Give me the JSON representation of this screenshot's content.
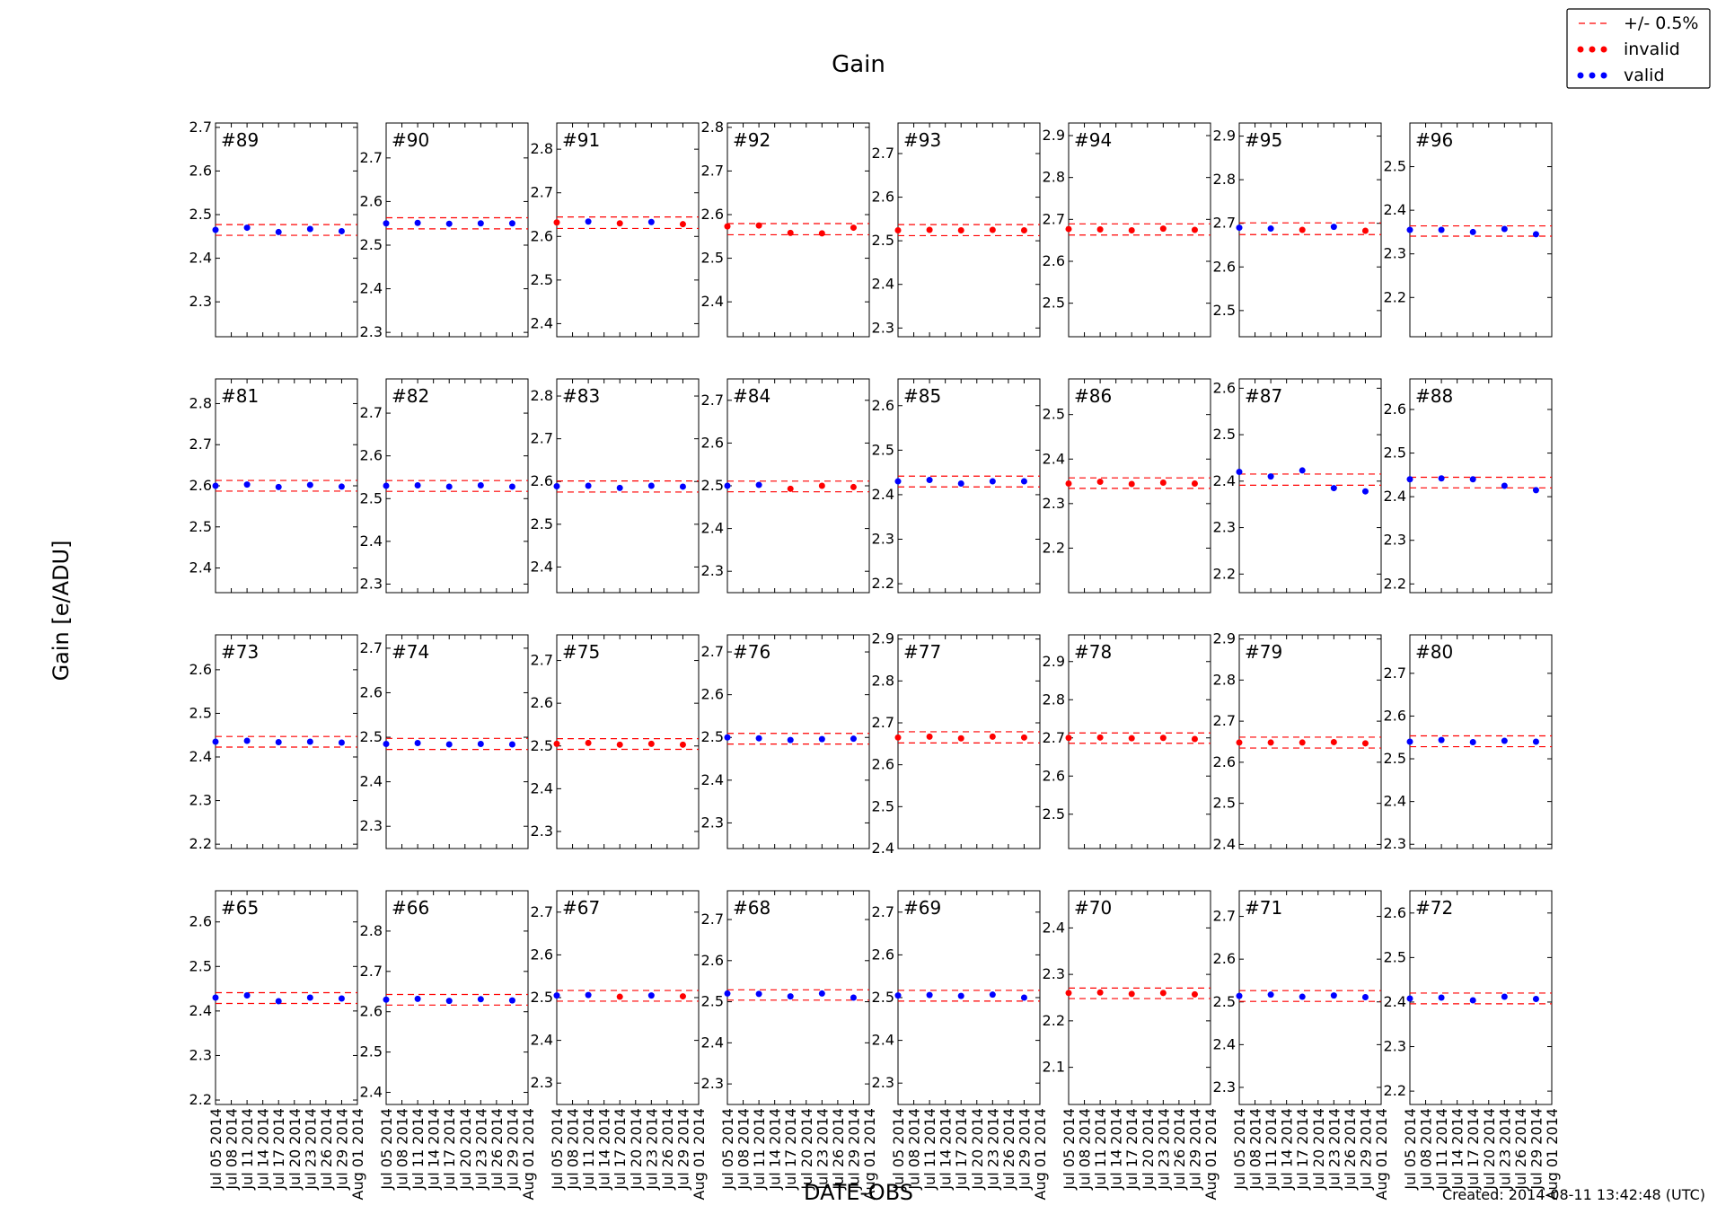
{
  "chart_data": {
    "type": "scatter",
    "title": "Gain",
    "xlabel": "DATE-OBS",
    "ylabel": "Gain [e/ADU]",
    "created": "Created: 2014-08-11 13:42:48 (UTC)",
    "legend": {
      "placement": "top-right",
      "entries": [
        {
          "key": "band",
          "label": "+/- 0.5%",
          "color": "#ff0000",
          "style": "dashed-line"
        },
        {
          "key": "invalid",
          "label": "invalid",
          "color": "#ff0000",
          "style": "dots"
        },
        {
          "key": "valid",
          "label": "valid",
          "color": "#0000ff",
          "style": "dots"
        }
      ]
    },
    "colors": {
      "valid": "#0000ff",
      "invalid": "#ff0000",
      "band": "#ff0000"
    },
    "x_tick_labels": [
      "Jul 05 2014",
      "Jul 08 2014",
      "Jul 11 2014",
      "Jul 14 2014",
      "Jul 17 2014",
      "Jul 20 2014",
      "Jul 23 2014",
      "Jul 26 2014",
      "Jul 29 2014",
      "Aug 01 2014"
    ],
    "x_dates": [
      "Jul 05 2014",
      "Jul 11 2014",
      "Jul 17 2014",
      "Jul 23 2014",
      "Jul 29 2014"
    ],
    "band_fraction": 0.005,
    "panels": [
      {
        "label": "#89",
        "ylim": [
          2.22,
          2.71
        ],
        "yticks": [
          2.3,
          2.4,
          2.5,
          2.6,
          2.7
        ],
        "values": [
          2.465,
          2.47,
          2.46,
          2.467,
          2.462
        ],
        "status": [
          "valid",
          "valid",
          "valid",
          "valid",
          "valid"
        ]
      },
      {
        "label": "#90",
        "ylim": [
          2.29,
          2.78
        ],
        "yticks": [
          2.3,
          2.4,
          2.5,
          2.6,
          2.7
        ],
        "values": [
          2.55,
          2.551,
          2.549,
          2.55,
          2.55
        ],
        "status": [
          "valid",
          "valid",
          "valid",
          "valid",
          "valid"
        ]
      },
      {
        "label": "#91",
        "ylim": [
          2.37,
          2.86
        ],
        "yticks": [
          2.4,
          2.5,
          2.6,
          2.7,
          2.8
        ],
        "values": [
          2.632,
          2.634,
          2.63,
          2.633,
          2.628
        ],
        "status": [
          "invalid",
          "valid",
          "invalid",
          "valid",
          "invalid"
        ]
      },
      {
        "label": "#92",
        "ylim": [
          2.32,
          2.81
        ],
        "yticks": [
          2.4,
          2.5,
          2.6,
          2.7,
          2.8
        ],
        "values": [
          2.573,
          2.575,
          2.558,
          2.557,
          2.57
        ],
        "status": [
          "invalid",
          "invalid",
          "invalid",
          "invalid",
          "invalid"
        ]
      },
      {
        "label": "#93",
        "ylim": [
          2.28,
          2.77
        ],
        "yticks": [
          2.3,
          2.4,
          2.5,
          2.6,
          2.7
        ],
        "values": [
          2.524,
          2.525,
          2.524,
          2.525,
          2.524
        ],
        "status": [
          "invalid",
          "invalid",
          "invalid",
          "invalid",
          "invalid"
        ]
      },
      {
        "label": "#94",
        "ylim": [
          2.42,
          2.93
        ],
        "yticks": [
          2.5,
          2.6,
          2.7,
          2.8,
          2.9
        ],
        "values": [
          2.677,
          2.676,
          2.674,
          2.678,
          2.675
        ],
        "status": [
          "invalid",
          "invalid",
          "invalid",
          "invalid",
          "invalid"
        ]
      },
      {
        "label": "#95",
        "ylim": [
          2.44,
          2.93
        ],
        "yticks": [
          2.5,
          2.6,
          2.7,
          2.8,
          2.9
        ],
        "values": [
          2.69,
          2.688,
          2.685,
          2.692,
          2.683
        ],
        "status": [
          "valid",
          "valid",
          "invalid",
          "valid",
          "invalid"
        ]
      },
      {
        "label": "#96",
        "ylim": [
          2.11,
          2.6
        ],
        "yticks": [
          2.2,
          2.3,
          2.4,
          2.5
        ],
        "values": [
          2.355,
          2.355,
          2.35,
          2.357,
          2.345
        ],
        "status": [
          "valid",
          "valid",
          "valid",
          "valid",
          "valid"
        ]
      },
      {
        "label": "#81",
        "ylim": [
          2.34,
          2.86
        ],
        "yticks": [
          2.4,
          2.5,
          2.6,
          2.7,
          2.8
        ],
        "values": [
          2.6,
          2.603,
          2.597,
          2.602,
          2.598
        ],
        "status": [
          "valid",
          "valid",
          "valid",
          "valid",
          "valid"
        ]
      },
      {
        "label": "#82",
        "ylim": [
          2.28,
          2.78
        ],
        "yticks": [
          2.3,
          2.4,
          2.5,
          2.6,
          2.7
        ],
        "values": [
          2.53,
          2.531,
          2.528,
          2.531,
          2.528
        ],
        "status": [
          "valid",
          "valid",
          "valid",
          "valid",
          "valid"
        ]
      },
      {
        "label": "#83",
        "ylim": [
          2.34,
          2.84
        ],
        "yticks": [
          2.4,
          2.5,
          2.6,
          2.7,
          2.8
        ],
        "values": [
          2.589,
          2.59,
          2.585,
          2.59,
          2.588
        ],
        "status": [
          "valid",
          "valid",
          "valid",
          "valid",
          "valid"
        ]
      },
      {
        "label": "#84",
        "ylim": [
          2.25,
          2.75
        ],
        "yticks": [
          2.3,
          2.4,
          2.5,
          2.6,
          2.7
        ],
        "values": [
          2.5,
          2.502,
          2.493,
          2.5,
          2.497
        ],
        "status": [
          "valid",
          "valid",
          "invalid",
          "invalid",
          "invalid"
        ]
      },
      {
        "label": "#85",
        "ylim": [
          2.18,
          2.66
        ],
        "yticks": [
          2.2,
          2.3,
          2.4,
          2.5,
          2.6
        ],
        "values": [
          2.43,
          2.433,
          2.425,
          2.43,
          2.43
        ],
        "status": [
          "valid",
          "valid",
          "valid",
          "valid",
          "valid"
        ]
      },
      {
        "label": "#86",
        "ylim": [
          2.1,
          2.58
        ],
        "yticks": [
          2.2,
          2.3,
          2.4,
          2.5
        ],
        "values": [
          2.345,
          2.349,
          2.344,
          2.347,
          2.345
        ],
        "status": [
          "invalid",
          "invalid",
          "invalid",
          "invalid",
          "invalid"
        ]
      },
      {
        "label": "#87",
        "ylim": [
          2.16,
          2.62
        ],
        "yticks": [
          2.2,
          2.3,
          2.4,
          2.5,
          2.6
        ],
        "values": [
          2.42,
          2.41,
          2.423,
          2.385,
          2.378
        ],
        "status": [
          "valid",
          "valid",
          "valid",
          "valid",
          "valid"
        ]
      },
      {
        "label": "#88",
        "ylim": [
          2.18,
          2.67
        ],
        "yticks": [
          2.2,
          2.3,
          2.4,
          2.5,
          2.6
        ],
        "values": [
          2.44,
          2.442,
          2.44,
          2.425,
          2.415
        ],
        "status": [
          "valid",
          "valid",
          "valid",
          "valid",
          "valid"
        ]
      },
      {
        "label": "#73",
        "ylim": [
          2.19,
          2.68
        ],
        "yticks": [
          2.2,
          2.3,
          2.4,
          2.5,
          2.6
        ],
        "values": [
          2.435,
          2.437,
          2.434,
          2.435,
          2.433
        ],
        "status": [
          "valid",
          "valid",
          "valid",
          "valid",
          "valid"
        ]
      },
      {
        "label": "#74",
        "ylim": [
          2.25,
          2.73
        ],
        "yticks": [
          2.3,
          2.4,
          2.5,
          2.6,
          2.7
        ],
        "values": [
          2.485,
          2.487,
          2.484,
          2.485,
          2.484
        ],
        "status": [
          "valid",
          "valid",
          "valid",
          "valid",
          "valid"
        ]
      },
      {
        "label": "#75",
        "ylim": [
          2.26,
          2.76
        ],
        "yticks": [
          2.3,
          2.4,
          2.5,
          2.6,
          2.7
        ],
        "values": [
          2.505,
          2.507,
          2.503,
          2.505,
          2.503
        ],
        "status": [
          "invalid",
          "invalid",
          "invalid",
          "invalid",
          "invalid"
        ]
      },
      {
        "label": "#76",
        "ylim": [
          2.24,
          2.74
        ],
        "yticks": [
          2.3,
          2.4,
          2.5,
          2.6,
          2.7
        ],
        "values": [
          2.5,
          2.498,
          2.494,
          2.496,
          2.497
        ],
        "status": [
          "valid",
          "valid",
          "valid",
          "valid",
          "valid"
        ]
      },
      {
        "label": "#77",
        "ylim": [
          2.4,
          2.91
        ],
        "yticks": [
          2.4,
          2.5,
          2.6,
          2.7,
          2.8,
          2.9
        ],
        "values": [
          2.665,
          2.667,
          2.663,
          2.667,
          2.665
        ],
        "status": [
          "invalid",
          "invalid",
          "invalid",
          "invalid",
          "invalid"
        ]
      },
      {
        "label": "#78",
        "ylim": [
          2.41,
          2.97
        ],
        "yticks": [
          2.5,
          2.6,
          2.7,
          2.8,
          2.9
        ],
        "values": [
          2.7,
          2.701,
          2.699,
          2.7,
          2.697
        ],
        "status": [
          "invalid",
          "invalid",
          "invalid",
          "invalid",
          "invalid"
        ]
      },
      {
        "label": "#79",
        "ylim": [
          2.39,
          2.91
        ],
        "yticks": [
          2.4,
          2.5,
          2.6,
          2.7,
          2.8,
          2.9
        ],
        "values": [
          2.648,
          2.648,
          2.648,
          2.649,
          2.646
        ],
        "status": [
          "invalid",
          "invalid",
          "invalid",
          "invalid",
          "invalid"
        ]
      },
      {
        "label": "#80",
        "ylim": [
          2.29,
          2.79
        ],
        "yticks": [
          2.3,
          2.4,
          2.5,
          2.6,
          2.7
        ],
        "values": [
          2.54,
          2.544,
          2.539,
          2.542,
          2.54
        ],
        "status": [
          "valid",
          "valid",
          "valid",
          "valid",
          "valid"
        ]
      },
      {
        "label": "#65",
        "ylim": [
          2.19,
          2.67
        ],
        "yticks": [
          2.2,
          2.3,
          2.4,
          2.5,
          2.6
        ],
        "values": [
          2.43,
          2.435,
          2.422,
          2.43,
          2.428
        ],
        "status": [
          "valid",
          "valid",
          "valid",
          "valid",
          "valid"
        ]
      },
      {
        "label": "#66",
        "ylim": [
          2.37,
          2.9
        ],
        "yticks": [
          2.4,
          2.5,
          2.6,
          2.7,
          2.8
        ],
        "values": [
          2.63,
          2.632,
          2.627,
          2.631,
          2.628
        ],
        "status": [
          "valid",
          "valid",
          "valid",
          "valid",
          "valid"
        ]
      },
      {
        "label": "#67",
        "ylim": [
          2.25,
          2.75
        ],
        "yticks": [
          2.3,
          2.4,
          2.5,
          2.6,
          2.7
        ],
        "values": [
          2.505,
          2.506,
          2.502,
          2.505,
          2.503
        ],
        "status": [
          "valid",
          "valid",
          "invalid",
          "valid",
          "invalid"
        ]
      },
      {
        "label": "#68",
        "ylim": [
          2.25,
          2.77
        ],
        "yticks": [
          2.3,
          2.4,
          2.5,
          2.6,
          2.7
        ],
        "values": [
          2.52,
          2.519,
          2.513,
          2.52,
          2.51
        ],
        "status": [
          "valid",
          "valid",
          "valid",
          "valid",
          "valid"
        ]
      },
      {
        "label": "#69",
        "ylim": [
          2.25,
          2.75
        ],
        "yticks": [
          2.3,
          2.4,
          2.5,
          2.6,
          2.7
        ],
        "values": [
          2.505,
          2.506,
          2.504,
          2.507,
          2.5
        ],
        "status": [
          "valid",
          "valid",
          "valid",
          "valid",
          "valid"
        ]
      },
      {
        "label": "#70",
        "ylim": [
          2.02,
          2.48
        ],
        "yticks": [
          2.1,
          2.2,
          2.3,
          2.4
        ],
        "values": [
          2.26,
          2.261,
          2.258,
          2.26,
          2.257
        ],
        "status": [
          "invalid",
          "invalid",
          "invalid",
          "invalid",
          "invalid"
        ]
      },
      {
        "label": "#71",
        "ylim": [
          2.26,
          2.76
        ],
        "yticks": [
          2.3,
          2.4,
          2.5,
          2.6,
          2.7
        ],
        "values": [
          2.514,
          2.517,
          2.512,
          2.515,
          2.511
        ],
        "status": [
          "valid",
          "valid",
          "valid",
          "valid",
          "valid"
        ]
      },
      {
        "label": "#72",
        "ylim": [
          2.17,
          2.65
        ],
        "yticks": [
          2.2,
          2.3,
          2.4,
          2.5,
          2.6
        ],
        "values": [
          2.408,
          2.41,
          2.404,
          2.412,
          2.407
        ],
        "status": [
          "valid",
          "valid",
          "valid",
          "valid",
          "valid"
        ]
      }
    ]
  }
}
